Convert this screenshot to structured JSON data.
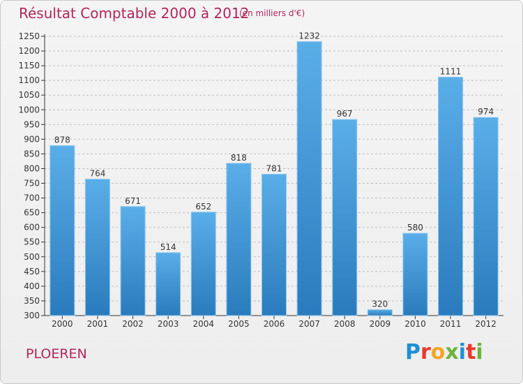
{
  "header": {
    "title": "Résultat Comptable 2000 à 2012",
    "subtitle": "(en milliers d'€)"
  },
  "footer": {
    "town": "PLOEREN",
    "brand": "Proxiti"
  },
  "colors": {
    "title": "#b2255d",
    "bar_top": "#5aaee8",
    "bar_bottom": "#2a7bbd",
    "grid": "#bdbdbd",
    "brand_letters": [
      "#1f8fd6",
      "#e8392b",
      "#f5a623",
      "#6cb33e",
      "#1f8fd6",
      "#e8392b",
      "#6cb33e"
    ]
  },
  "chart_data": {
    "type": "bar",
    "title": "Résultat Comptable 2000 à 2012",
    "subtitle": "(en milliers d'€)",
    "categories": [
      "2000",
      "2001",
      "2002",
      "2003",
      "2004",
      "2005",
      "2006",
      "2007",
      "2008",
      "2009",
      "2010",
      "2011",
      "2012"
    ],
    "values": [
      878,
      764,
      671,
      514,
      652,
      818,
      781,
      1232,
      967,
      320,
      580,
      1111,
      974
    ],
    "ylim": [
      300,
      1250
    ],
    "yticks": [
      300,
      350,
      400,
      450,
      500,
      550,
      600,
      650,
      700,
      750,
      800,
      850,
      900,
      950,
      1000,
      1050,
      1100,
      1150,
      1200,
      1250
    ],
    "xlabel": "",
    "ylabel": "",
    "grid": true,
    "data_labels": true
  }
}
